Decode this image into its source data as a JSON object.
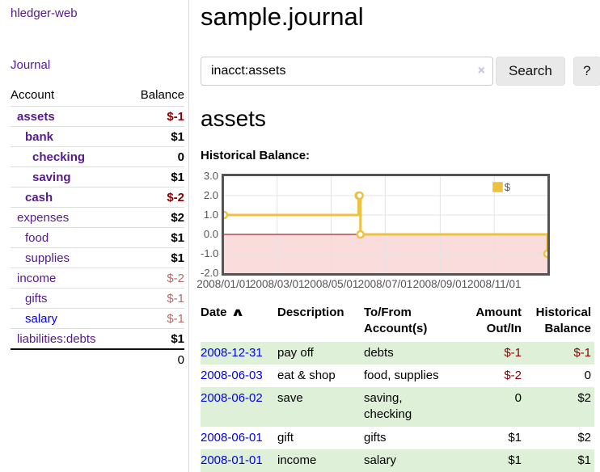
{
  "app": {
    "title": "hledger-web",
    "nav": {
      "journal": "Journal"
    }
  },
  "sidebar": {
    "table_headers": {
      "account": "Account",
      "balance": "Balance"
    },
    "accounts": [
      {
        "name": "assets",
        "level": 1,
        "bold": true,
        "balance": "$-1",
        "balance_style": "neg-strong"
      },
      {
        "name": "bank",
        "level": 2,
        "bold": true,
        "balance": "$1",
        "balance_style": "pos"
      },
      {
        "name": "checking",
        "level": 3,
        "bold": true,
        "balance": "0",
        "balance_style": "pos"
      },
      {
        "name": "saving",
        "level": 3,
        "bold": true,
        "balance": "$1",
        "balance_style": "pos"
      },
      {
        "name": "cash",
        "level": 2,
        "bold": true,
        "balance": "$-2",
        "balance_style": "neg-strong"
      },
      {
        "name": "expenses",
        "level": 1,
        "bold": false,
        "balance": "$2",
        "balance_style": "pos"
      },
      {
        "name": "food",
        "level": 2,
        "bold": false,
        "balance": "$1",
        "balance_style": "pos"
      },
      {
        "name": "supplies",
        "level": 2,
        "bold": false,
        "balance": "$1",
        "balance_style": "pos"
      },
      {
        "name": "income",
        "level": 1,
        "bold": false,
        "balance": "$-2",
        "balance_style": "neg-muted"
      },
      {
        "name": "gifts",
        "level": 2,
        "bold": false,
        "balance": "$-1",
        "balance_style": "neg-muted"
      },
      {
        "name": "salary",
        "level": 2,
        "bold": false,
        "blue": true,
        "balance": "$-1",
        "balance_style": "neg-muted"
      },
      {
        "name": "liabilities:debts",
        "level": 1,
        "bold": false,
        "balance": "$1",
        "balance_style": "pos"
      }
    ],
    "total": "0"
  },
  "main": {
    "title": "sample.journal",
    "search": {
      "value": "inacct:assets",
      "clear_icon": "×",
      "search_button": "Search",
      "help_button": "?"
    },
    "account_heading": "assets",
    "chart_title": "Historical Balance:"
  },
  "chart_data": {
    "type": "line",
    "step": true,
    "title": "Historical Balance",
    "series": [
      {
        "name": "$",
        "points": [
          [
            "2008-01-01",
            1
          ],
          [
            "2008-06-01",
            2
          ],
          [
            "2008-06-02",
            2
          ],
          [
            "2008-06-03",
            0
          ],
          [
            "2008-12-31",
            -1
          ]
        ]
      }
    ],
    "x_range": [
      "2008-01-01",
      "2008-12-31"
    ],
    "ylim": [
      -2,
      3
    ],
    "y_ticks": [
      "3.0",
      "2.0",
      "1.0",
      "0.0",
      "-1.0",
      "-2.0"
    ],
    "x_ticks": [
      {
        "label": "2008/01/01",
        "date": "2008-01-01"
      },
      {
        "label": "2008/03/01",
        "date": "2008-03-01"
      },
      {
        "label": "2008/05/01",
        "date": "2008-05-01"
      },
      {
        "label": "2008/07/01",
        "date": "2008-07-01"
      },
      {
        "label": "2008/09/01",
        "date": "2008-09-01"
      },
      {
        "label": "2008/11/01",
        "date": "2008-11-01"
      }
    ],
    "legend": {
      "label": "$",
      "position": "top-right"
    },
    "grid": true,
    "colors": {
      "line": "#edc240",
      "negative_fill": "#fadcdc",
      "zero_line": "#880000",
      "grid": "#e3e3e3",
      "border": "#545454"
    }
  },
  "register": {
    "headers": {
      "date": "Date",
      "sort_icon": "∧",
      "description": "Description",
      "account": "To/From Account(s)",
      "amount": "Amount Out/In",
      "balance": "Historical Balance"
    },
    "rows": [
      {
        "date": "2008-12-31",
        "description": "pay off",
        "accounts": "debts",
        "amount": "$-1",
        "amount_neg": true,
        "balance": "$-1",
        "balance_neg": true,
        "shaded": true
      },
      {
        "date": "2008-06-03",
        "description": "eat & shop",
        "accounts": "food, supplies",
        "amount": "$-2",
        "amount_neg": true,
        "balance": "0",
        "balance_neg": false,
        "shaded": false
      },
      {
        "date": "2008-06-02",
        "description": "save",
        "accounts": "saving, checking",
        "amount": "0",
        "amount_neg": false,
        "balance": "$2",
        "balance_neg": false,
        "shaded": true
      },
      {
        "date": "2008-06-01",
        "description": "gift",
        "accounts": "gifts",
        "amount": "$1",
        "amount_neg": false,
        "balance": "$2",
        "balance_neg": false,
        "shaded": false
      },
      {
        "date": "2008-01-01",
        "description": "income",
        "accounts": "salary",
        "amount": "$1",
        "amount_neg": false,
        "balance": "$1",
        "balance_neg": false,
        "shaded": true
      }
    ]
  }
}
